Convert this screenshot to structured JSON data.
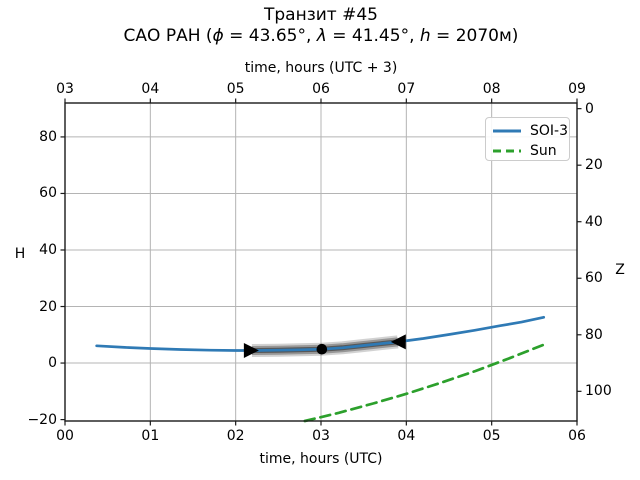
{
  "chart_data": {
    "type": "line",
    "title": "Транзит #45",
    "subtitle_segments": {
      "pre": "САО РАН (",
      "phi": "ϕ",
      "s1": " = 43.65°, ",
      "lam": "λ",
      "s2": " = 41.45°, ",
      "h": "h",
      "s3": " = 2070м)"
    },
    "axes": {
      "bottom": {
        "label": "time, hours (UTC)",
        "ticks": [
          {
            "t": 0,
            "label": "00"
          },
          {
            "t": 1,
            "label": "01"
          },
          {
            "t": 2,
            "label": "02"
          },
          {
            "t": 3,
            "label": "03"
          },
          {
            "t": 4,
            "label": "04"
          },
          {
            "t": 5,
            "label": "05"
          },
          {
            "t": 6,
            "label": "06"
          }
        ]
      },
      "top": {
        "label": "time, hours (UTC + 3)",
        "ticks": [
          {
            "t": 0,
            "label": "03"
          },
          {
            "t": 1,
            "label": "04"
          },
          {
            "t": 2,
            "label": "05"
          },
          {
            "t": 3,
            "label": "06"
          },
          {
            "t": 4,
            "label": "07"
          },
          {
            "t": 5,
            "label": "08"
          },
          {
            "t": 6,
            "label": "09"
          }
        ]
      },
      "left": {
        "label": "H",
        "ticks": [
          {
            "v": 80,
            "label": "80"
          },
          {
            "v": 60,
            "label": "60"
          },
          {
            "v": 40,
            "label": "40"
          },
          {
            "v": 20,
            "label": "20"
          },
          {
            "v": 0,
            "label": "0"
          },
          {
            "v": -20,
            "label": "−20"
          }
        ]
      },
      "right": {
        "label": "Z",
        "ticks": [
          {
            "z": 0,
            "label": "0"
          },
          {
            "z": 20,
            "label": "20"
          },
          {
            "z": 40,
            "label": "40"
          },
          {
            "z": 60,
            "label": "60"
          },
          {
            "z": 80,
            "label": "80"
          },
          {
            "z": 100,
            "label": "100"
          }
        ]
      }
    },
    "xlim": [
      0,
      6
    ],
    "ylim": [
      -20.5,
      92
    ],
    "grid": true,
    "legend_position": "upper right",
    "colors": {
      "soi3": "#2f7ab5",
      "sun": "#2ca02c",
      "band": "#4d4d4d",
      "marker": "#000000",
      "grid": "#b4b4b4",
      "spine": "#1a1a1a"
    },
    "series": [
      {
        "name": "SOI-3",
        "style": "solid",
        "color": "#2f7ab5",
        "x": [
          0.37,
          0.7,
          1.0,
          1.35,
          1.7,
          2.0,
          2.19,
          2.5,
          2.75,
          3.01,
          3.25,
          3.5,
          3.7,
          3.9,
          4.2,
          4.5,
          4.8,
          5.1,
          5.35,
          5.61
        ],
        "h": [
          6.1,
          5.55,
          5.15,
          4.8,
          4.55,
          4.45,
          4.45,
          4.55,
          4.7,
          4.9,
          5.4,
          6.2,
          6.85,
          7.5,
          8.7,
          10.1,
          11.6,
          13.2,
          14.5,
          16.2
        ]
      },
      {
        "name": "Sun",
        "style": "dashed",
        "color": "#2ca02c",
        "x": [
          2.81,
          3.21,
          3.61,
          4.01,
          4.41,
          4.81,
          5.21,
          5.61
        ],
        "h": [
          -20.5,
          -17.6,
          -14.3,
          -10.8,
          -6.9,
          -2.8,
          1.7,
          6.5
        ]
      }
    ],
    "annotations": {
      "transit_band": {
        "t_start": 2.19,
        "t_end": 3.9,
        "color": "#4d4d4d"
      },
      "markers": [
        {
          "type": "triangle-right",
          "t": 2.19,
          "h": 4.45
        },
        {
          "type": "dot",
          "t": 3.01,
          "h": 4.9
        },
        {
          "type": "triangle-left",
          "t": 3.9,
          "h": 7.5
        }
      ]
    }
  }
}
